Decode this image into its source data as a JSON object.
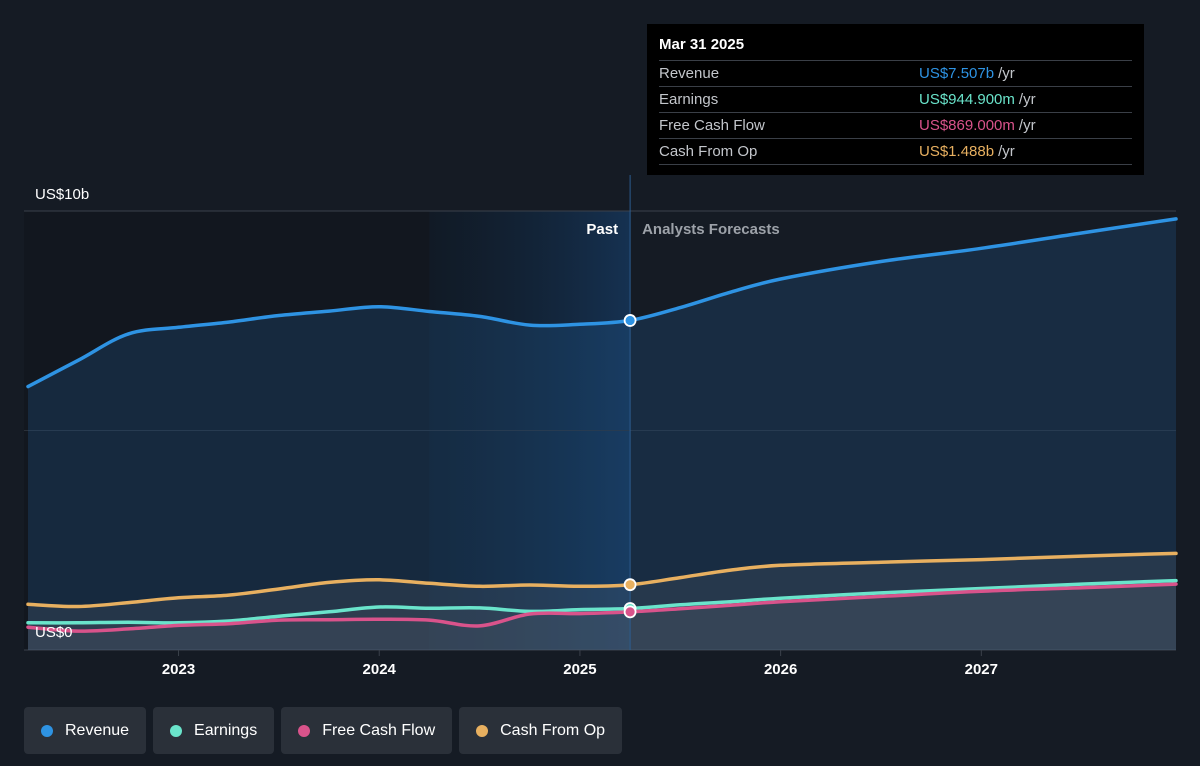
{
  "tooltip": {
    "date": "Mar 31 2025",
    "rows": [
      {
        "label": "Revenue",
        "value": "US$7.507b",
        "unit": "/yr",
        "color": "#2e93e3"
      },
      {
        "label": "Earnings",
        "value": "US$944.900m",
        "unit": "/yr",
        "color": "#6ae4cb"
      },
      {
        "label": "Free Cash Flow",
        "value": "US$869.000m",
        "unit": "/yr",
        "color": "#d9538b"
      },
      {
        "label": "Cash From Op",
        "value": "US$1.488b",
        "unit": "/yr",
        "color": "#e8b060"
      }
    ]
  },
  "legend": [
    {
      "label": "Revenue",
      "color": "#2e93e3"
    },
    {
      "label": "Earnings",
      "color": "#6ae4cb"
    },
    {
      "label": "Free Cash Flow",
      "color": "#d9538b"
    },
    {
      "label": "Cash From Op",
      "color": "#e8b060"
    }
  ],
  "chart_data": {
    "type": "line",
    "y_unit_label_top": "US$10b",
    "y_unit_label_bottom": "US$0",
    "ylim": [
      0,
      10
    ],
    "x_ticks": [
      "2023",
      "2024",
      "2025",
      "2026",
      "2027"
    ],
    "xlim": [
      2022.23,
      2027.97
    ],
    "past_label": "Past",
    "forecast_label": "Analysts Forecasts",
    "divider_x": 2025.25,
    "highlight_start": 2024.25,
    "series": [
      {
        "name": "Revenue",
        "color": "#2e93e3",
        "points": [
          [
            2022.25,
            6.0
          ],
          [
            2022.5,
            6.6
          ],
          [
            2022.75,
            7.2
          ],
          [
            2023.0,
            7.35
          ],
          [
            2023.25,
            7.47
          ],
          [
            2023.5,
            7.62
          ],
          [
            2023.75,
            7.72
          ],
          [
            2024.0,
            7.82
          ],
          [
            2024.25,
            7.71
          ],
          [
            2024.5,
            7.6
          ],
          [
            2024.75,
            7.4
          ],
          [
            2025.0,
            7.42
          ],
          [
            2025.25,
            7.507
          ],
          [
            2025.5,
            7.8
          ],
          [
            2025.75,
            8.15
          ],
          [
            2026.0,
            8.45
          ],
          [
            2026.5,
            8.85
          ],
          [
            2027.0,
            9.15
          ],
          [
            2027.5,
            9.5
          ],
          [
            2027.97,
            9.82
          ]
        ]
      },
      {
        "name": "Earnings",
        "color": "#6ae4cb",
        "points": [
          [
            2022.25,
            0.62
          ],
          [
            2022.5,
            0.62
          ],
          [
            2022.75,
            0.63
          ],
          [
            2023.0,
            0.62
          ],
          [
            2023.25,
            0.66
          ],
          [
            2023.5,
            0.77
          ],
          [
            2023.75,
            0.87
          ],
          [
            2024.0,
            0.98
          ],
          [
            2024.25,
            0.95
          ],
          [
            2024.5,
            0.96
          ],
          [
            2024.75,
            0.88
          ],
          [
            2025.0,
            0.92
          ],
          [
            2025.25,
            0.945
          ],
          [
            2025.5,
            1.03
          ],
          [
            2025.75,
            1.1
          ],
          [
            2026.0,
            1.18
          ],
          [
            2026.5,
            1.3
          ],
          [
            2027.0,
            1.4
          ],
          [
            2027.5,
            1.5
          ],
          [
            2027.97,
            1.58
          ]
        ]
      },
      {
        "name": "Free Cash Flow",
        "color": "#d9538b",
        "points": [
          [
            2022.25,
            0.52
          ],
          [
            2022.5,
            0.43
          ],
          [
            2022.75,
            0.48
          ],
          [
            2023.0,
            0.56
          ],
          [
            2023.25,
            0.6
          ],
          [
            2023.5,
            0.68
          ],
          [
            2023.75,
            0.69
          ],
          [
            2024.0,
            0.7
          ],
          [
            2024.25,
            0.68
          ],
          [
            2024.5,
            0.55
          ],
          [
            2024.75,
            0.82
          ],
          [
            2025.0,
            0.83
          ],
          [
            2025.25,
            0.869
          ],
          [
            2025.5,
            0.94
          ],
          [
            2025.75,
            1.02
          ],
          [
            2026.0,
            1.1
          ],
          [
            2026.5,
            1.22
          ],
          [
            2027.0,
            1.34
          ],
          [
            2027.5,
            1.42
          ],
          [
            2027.97,
            1.5
          ]
        ]
      },
      {
        "name": "Cash From Op",
        "color": "#e8b060",
        "points": [
          [
            2022.25,
            1.04
          ],
          [
            2022.5,
            0.99
          ],
          [
            2022.75,
            1.08
          ],
          [
            2023.0,
            1.19
          ],
          [
            2023.25,
            1.25
          ],
          [
            2023.5,
            1.39
          ],
          [
            2023.75,
            1.54
          ],
          [
            2024.0,
            1.6
          ],
          [
            2024.25,
            1.52
          ],
          [
            2024.5,
            1.45
          ],
          [
            2024.75,
            1.48
          ],
          [
            2025.0,
            1.45
          ],
          [
            2025.25,
            1.488
          ],
          [
            2025.5,
            1.65
          ],
          [
            2025.75,
            1.82
          ],
          [
            2026.0,
            1.93
          ],
          [
            2026.5,
            2.0
          ],
          [
            2027.0,
            2.06
          ],
          [
            2027.5,
            2.14
          ],
          [
            2027.97,
            2.2
          ]
        ]
      }
    ]
  }
}
